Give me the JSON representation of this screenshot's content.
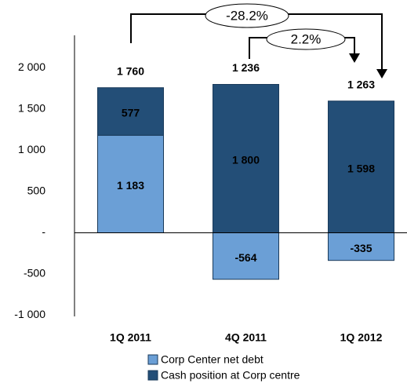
{
  "chart_data": {
    "type": "bar",
    "stacked": true,
    "categories": [
      "1Q 2011",
      "4Q 2011",
      "1Q 2012"
    ],
    "series": [
      {
        "name": "Corp Center net debt",
        "color": "#6b9fd6",
        "values": [
          1183,
          -564,
          -335
        ],
        "value_labels": [
          "1 183",
          "-564",
          "-335"
        ]
      },
      {
        "name": "Cash position at Corp centre",
        "color": "#234e77",
        "values": [
          577,
          1800,
          1598
        ],
        "value_labels": [
          "577",
          "1 800",
          "1 598"
        ]
      }
    ],
    "totals": [
      "1 760",
      "1 236",
      "1 263"
    ],
    "annotations": [
      "-28.2%",
      "2.2%"
    ],
    "ylim": [
      -1000,
      2000
    ],
    "yticks": [
      {
        "value": -1000,
        "label": "-1 000"
      },
      -500,
      {
        "value": 0,
        "label": "-"
      },
      500,
      {
        "value": 1000,
        "label": "1 000"
      },
      {
        "value": 1500,
        "label": "1 500"
      },
      {
        "value": 2000,
        "label": "2 000"
      }
    ],
    "legend": "bottom"
  }
}
